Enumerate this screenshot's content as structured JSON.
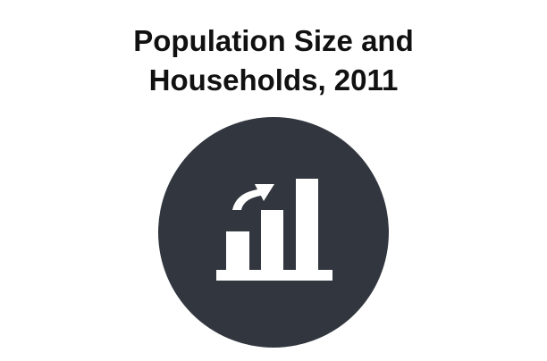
{
  "title": {
    "line1": "Population Size and",
    "line2": "Households, 2011"
  },
  "icon": {
    "name": "bar-chart-growth-icon",
    "badge_color": "#32363f",
    "glyph_color": "#ffffff"
  }
}
